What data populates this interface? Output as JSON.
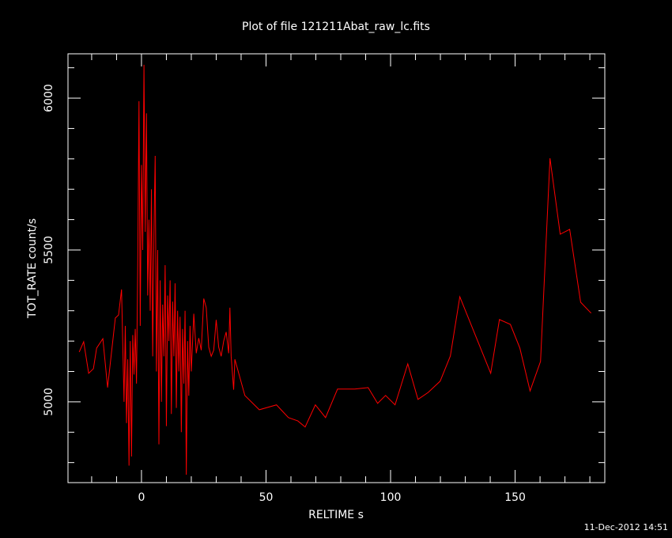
{
  "chart_data": {
    "type": "line",
    "title": "Plot of file 121211Abat_raw_lc.fits",
    "xlabel": "RELTIME  s",
    "ylabel": "TOT_RATE  count/s",
    "timestamp": "11-Dec-2012 14:51",
    "color": "#ff0000",
    "xlim": [
      -29.5,
      186
    ],
    "ylim": [
      4734,
      6146
    ],
    "xticks": [
      0,
      50,
      100,
      150
    ],
    "yticks": [
      5000,
      5500,
      6000
    ],
    "xminorticks": [
      -20,
      -10,
      10,
      20,
      30,
      40,
      60,
      70,
      80,
      90,
      110,
      120,
      130,
      140,
      160,
      170,
      180
    ],
    "yminorticks": [
      4800,
      4900,
      5100,
      5200,
      5300,
      5400,
      5600,
      5700,
      5800,
      5900,
      6100
    ],
    "x": [
      -25,
      -23.2,
      -21.2,
      -19.3,
      -18,
      -15.5,
      -13.6,
      -10.5,
      -9.2,
      -8,
      -7,
      -6.5,
      -6,
      -5.5,
      -5,
      -4.5,
      -4,
      -3.5,
      -3,
      -2.5,
      -2,
      -1.5,
      -1,
      -0.5,
      0,
      0.5,
      1,
      1.5,
      2,
      2.5,
      3,
      3.5,
      4,
      4.5,
      5,
      5.5,
      6,
      6.5,
      7,
      7.5,
      8,
      8.5,
      9,
      9.5,
      10,
      10.5,
      11,
      11.5,
      12,
      12.5,
      13,
      13.5,
      14,
      14.5,
      15,
      15.5,
      16,
      16.5,
      17,
      17.5,
      18,
      18.5,
      19,
      19.5,
      20,
      21,
      22,
      23,
      24,
      25,
      26,
      27,
      28,
      29,
      30,
      31,
      32,
      33,
      34,
      35,
      35.5,
      36,
      37,
      37.5,
      41.5,
      47.3,
      54.2,
      59,
      62.8,
      65.7,
      69.8,
      73.9,
      78.7,
      85.6,
      91,
      94.8,
      98,
      101.8,
      106.9,
      111,
      115.1,
      119.9,
      124,
      127.8,
      140.2,
      143.7,
      148.1,
      151.9,
      156,
      160.2,
      164,
      168.1,
      171.9,
      176.3,
      180.5
    ],
    "values": [
      5164,
      5198,
      5094,
      5109,
      5177,
      5208,
      5047,
      5276,
      5286,
      5370,
      5000,
      5250,
      4930,
      5140,
      4790,
      5200,
      4820,
      5220,
      5090,
      5240,
      5060,
      5450,
      5990,
      5250,
      5780,
      5500,
      6110,
      5560,
      5950,
      5350,
      5600,
      5300,
      5700,
      5150,
      5550,
      5810,
      5100,
      5500,
      4860,
      5400,
      5000,
      5320,
      5150,
      5450,
      4920,
      5350,
      5200,
      5400,
      4960,
      5330,
      5150,
      5390,
      4980,
      5300,
      5100,
      5280,
      4900,
      5240,
      5060,
      5300,
      4760,
      5200,
      5020,
      5250,
      5100,
      5290,
      5160,
      5210,
      5170,
      5340,
      5310,
      5180,
      5150,
      5170,
      5270,
      5180,
      5150,
      5200,
      5230,
      5160,
      5310,
      5150,
      5040,
      5140,
      5021,
      4974,
      4990,
      4948,
      4937,
      4917,
      4990,
      4948,
      5042,
      5042,
      5047,
      4995,
      5021,
      4990,
      5125,
      5008,
      5031,
      5068,
      5151,
      5346,
      5094,
      5271,
      5255,
      5177,
      5036,
      5133,
      5802,
      5552,
      5568,
      5328,
      5292
    ]
  }
}
